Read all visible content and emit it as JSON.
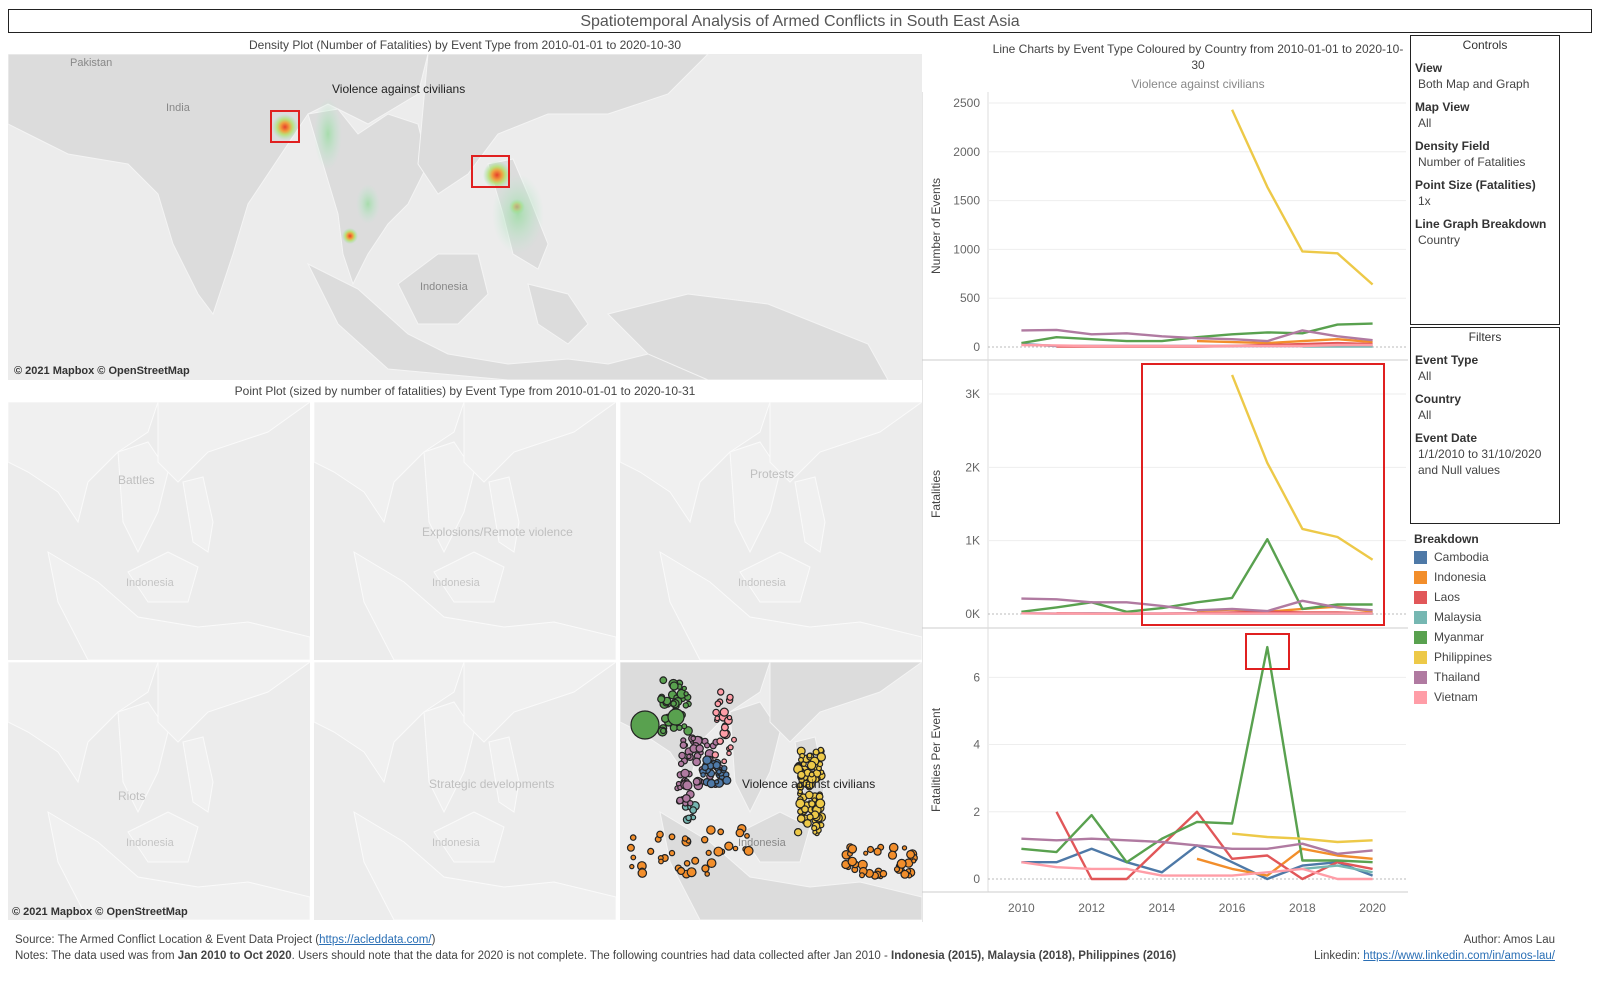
{
  "page_title": "Spatiotemporal Analysis of Armed Conflicts in South East Asia",
  "density": {
    "title": "Density Plot (Number of Fatalities) by Event Type from 2010-01-01 to 2020-10-30",
    "caption": "Violence against civilians",
    "labels": {
      "pakistan": "Pakistan",
      "india": "India",
      "indonesia": "Indonesia"
    },
    "attribution": "© 2021 Mapbox © OpenStreetMap"
  },
  "points": {
    "title": "Point Plot (sized by number of fatalities) by Event Type from 2010-01-01 to 2020-10-31",
    "panels": [
      {
        "caption": "Battles",
        "country": "Indonesia"
      },
      {
        "caption": "Explosions/Remote violence",
        "country": "Indonesia"
      },
      {
        "caption": "Protests",
        "country": "Indonesia"
      },
      {
        "caption": "Riots",
        "country": "Indonesia"
      },
      {
        "caption": "Strategic developments",
        "country": "Indonesia"
      },
      {
        "caption": "Violence against civilians",
        "country": "Indonesia"
      }
    ],
    "attribution": "© 2021 Mapbox © OpenStreetMap"
  },
  "line_charts": {
    "title": "Line Charts by Event Type Coloured by Country from 2010-01-01 to 2020-10-30",
    "subtitle": "Violence against civilians"
  },
  "chart_data": [
    {
      "type": "line",
      "ylabel": "Number of Events",
      "ylim": [
        0,
        2500
      ],
      "yticks": [
        0,
        500,
        1000,
        1500,
        2000,
        2500
      ],
      "ytick_labels": [
        "0",
        "500",
        "1000",
        "1500",
        "2000",
        "2500"
      ],
      "series": [
        {
          "name": "Cambodia",
          "x": [
            2010,
            2011,
            2012,
            2013,
            2014,
            2015,
            2016,
            2017,
            2018,
            2019,
            2020
          ],
          "values": [
            30,
            10,
            10,
            10,
            10,
            10,
            10,
            10,
            10,
            10,
            10
          ]
        },
        {
          "name": "Indonesia",
          "x": [
            2015,
            2016,
            2017,
            2018,
            2019,
            2020
          ],
          "values": [
            60,
            50,
            40,
            60,
            80,
            50
          ]
        },
        {
          "name": "Laos",
          "x": [
            2011,
            2012,
            2013,
            2014,
            2015,
            2016,
            2017,
            2018,
            2019,
            2020
          ],
          "values": [
            5,
            5,
            5,
            5,
            5,
            10,
            20,
            30,
            40,
            30
          ]
        },
        {
          "name": "Malaysia",
          "x": [
            2018,
            2019,
            2020
          ],
          "values": [
            5,
            5,
            5
          ]
        },
        {
          "name": "Myanmar",
          "x": [
            2010,
            2011,
            2012,
            2013,
            2014,
            2015,
            2016,
            2017,
            2018,
            2019,
            2020
          ],
          "values": [
            40,
            100,
            80,
            60,
            60,
            100,
            130,
            150,
            140,
            230,
            240
          ]
        },
        {
          "name": "Philippines",
          "x": [
            2016,
            2017,
            2018,
            2019,
            2020
          ],
          "values": [
            2430,
            1640,
            980,
            960,
            640
          ]
        },
        {
          "name": "Thailand",
          "x": [
            2010,
            2011,
            2012,
            2013,
            2014,
            2015,
            2016,
            2017,
            2018,
            2019,
            2020
          ],
          "values": [
            170,
            175,
            130,
            140,
            110,
            90,
            80,
            60,
            170,
            110,
            70
          ]
        },
        {
          "name": "Vietnam",
          "x": [
            2010,
            2011,
            2012,
            2013,
            2014,
            2015,
            2016,
            2017,
            2018,
            2019,
            2020
          ],
          "values": [
            20,
            15,
            10,
            10,
            10,
            10,
            10,
            10,
            10,
            20,
            20
          ]
        }
      ]
    },
    {
      "type": "line",
      "ylabel": "Fatalities",
      "ylim": [
        0,
        3300
      ],
      "yticks": [
        0,
        1000,
        2000,
        3000
      ],
      "ytick_labels": [
        "0K",
        "1K",
        "2K",
        "3K"
      ],
      "series": [
        {
          "name": "Cambodia",
          "x": [
            2010,
            2011,
            2012,
            2013,
            2014,
            2015,
            2016,
            2017,
            2018,
            2019,
            2020
          ],
          "values": [
            10,
            5,
            10,
            5,
            5,
            10,
            5,
            5,
            5,
            5,
            5
          ]
        },
        {
          "name": "Indonesia",
          "x": [
            2015,
            2016,
            2017,
            2018,
            2019,
            2020
          ],
          "values": [
            40,
            60,
            30,
            70,
            100,
            30
          ]
        },
        {
          "name": "Laos",
          "x": [
            2011,
            2012,
            2013,
            2014,
            2015,
            2016,
            2017,
            2018,
            2019,
            2020
          ],
          "values": [
            10,
            5,
            5,
            5,
            10,
            20,
            30,
            20,
            20,
            10
          ]
        },
        {
          "name": "Malaysia",
          "x": [
            2018,
            2019,
            2020
          ],
          "values": [
            5,
            5,
            5
          ]
        },
        {
          "name": "Myanmar",
          "x": [
            2010,
            2011,
            2012,
            2013,
            2014,
            2015,
            2016,
            2017,
            2018,
            2019,
            2020
          ],
          "values": [
            30,
            90,
            160,
            30,
            80,
            160,
            220,
            1020,
            70,
            130,
            130
          ]
        },
        {
          "name": "Philippines",
          "x": [
            2016,
            2017,
            2018,
            2019,
            2020
          ],
          "values": [
            3260,
            2060,
            1160,
            1050,
            740
          ]
        },
        {
          "name": "Thailand",
          "x": [
            2010,
            2011,
            2012,
            2013,
            2014,
            2015,
            2016,
            2017,
            2018,
            2019,
            2020
          ],
          "values": [
            210,
            200,
            160,
            160,
            110,
            50,
            70,
            40,
            180,
            90,
            50
          ]
        },
        {
          "name": "Vietnam",
          "x": [
            2010,
            2011,
            2012,
            2013,
            2014,
            2015,
            2016,
            2017,
            2018,
            2019,
            2020
          ],
          "values": [
            10,
            5,
            5,
            5,
            5,
            5,
            5,
            5,
            5,
            5,
            5
          ]
        }
      ]
    },
    {
      "type": "line",
      "ylabel": "Fatalities Per Event",
      "ylim": [
        0,
        7.2
      ],
      "yticks": [
        0,
        2,
        4,
        6
      ],
      "ytick_labels": [
        "0",
        "2",
        "4",
        "6"
      ],
      "xticks": [
        2010,
        2012,
        2014,
        2016,
        2018,
        2020
      ],
      "xtick_labels": [
        "2010",
        "2012",
        "2014",
        "2016",
        "2018",
        "2020"
      ],
      "series": [
        {
          "name": "Cambodia",
          "x": [
            2010,
            2011,
            2012,
            2013,
            2014,
            2015,
            2016,
            2017,
            2018,
            2019,
            2020
          ],
          "values": [
            0.5,
            0.5,
            0.9,
            0.5,
            0.2,
            1.0,
            0.5,
            0.0,
            0.4,
            0.5,
            0.1
          ]
        },
        {
          "name": "Indonesia",
          "x": [
            2015,
            2016,
            2017,
            2018,
            2019,
            2020
          ],
          "values": [
            0.6,
            0.3,
            0.1,
            0.9,
            0.7,
            0.6
          ]
        },
        {
          "name": "Laos",
          "x": [
            2011,
            2012,
            2013,
            2014,
            2015,
            2016,
            2017,
            2018,
            2019,
            2020
          ],
          "values": [
            2.0,
            0.0,
            0.0,
            1.0,
            2.0,
            0.6,
            0.7,
            0.0,
            0.5,
            0.3
          ]
        },
        {
          "name": "Malaysia",
          "x": [
            2018,
            2019,
            2020
          ],
          "values": [
            0.3,
            0.4,
            0.2
          ]
        },
        {
          "name": "Myanmar",
          "x": [
            2010,
            2011,
            2012,
            2013,
            2014,
            2015,
            2016,
            2017,
            2018,
            2019,
            2020
          ],
          "values": [
            0.9,
            0.8,
            1.9,
            0.5,
            1.2,
            1.7,
            1.65,
            6.9,
            0.55,
            0.55,
            0.5
          ]
        },
        {
          "name": "Philippines",
          "x": [
            2016,
            2017,
            2018,
            2019,
            2020
          ],
          "values": [
            1.35,
            1.25,
            1.2,
            1.1,
            1.15
          ]
        },
        {
          "name": "Thailand",
          "x": [
            2010,
            2011,
            2012,
            2013,
            2014,
            2015,
            2016,
            2017,
            2018,
            2019,
            2020
          ],
          "values": [
            1.2,
            1.15,
            1.2,
            1.15,
            1.1,
            1.0,
            0.9,
            0.9,
            1.05,
            0.75,
            0.85
          ]
        },
        {
          "name": "Vietnam",
          "x": [
            2010,
            2011,
            2012,
            2013,
            2014,
            2015,
            2016,
            2017,
            2018,
            2019,
            2020
          ],
          "values": [
            0.5,
            0.35,
            0.3,
            0.3,
            0.1,
            0.1,
            0.1,
            0.2,
            0.3,
            0.0,
            0.0
          ]
        }
      ]
    }
  ],
  "controls": {
    "title": "Controls",
    "items": [
      {
        "label": "View",
        "value": "Both Map and Graph"
      },
      {
        "label": "Map View",
        "value": "All"
      },
      {
        "label": "Density Field",
        "value": "Number of Fatalities"
      },
      {
        "label": "Point Size (Fatalities)",
        "value": "1x"
      },
      {
        "label": "Line Graph Breakdown",
        "value": "Country"
      }
    ]
  },
  "filters": {
    "title": "Filters",
    "items": [
      {
        "label": "Event Type",
        "value": "All"
      },
      {
        "label": "Country",
        "value": "All"
      },
      {
        "label": "Event Date",
        "value": "1/1/2010 to 31/10/2020",
        "value2": "and Null values"
      }
    ]
  },
  "legend": {
    "title": "Breakdown",
    "items": [
      {
        "name": "Cambodia",
        "color": "#4e79a7"
      },
      {
        "name": "Indonesia",
        "color": "#f28e2b"
      },
      {
        "name": "Laos",
        "color": "#e15759"
      },
      {
        "name": "Malaysia",
        "color": "#76b7b2"
      },
      {
        "name": "Myanmar",
        "color": "#59a14f"
      },
      {
        "name": "Philippines",
        "color": "#edc948"
      },
      {
        "name": "Thailand",
        "color": "#b07aa1"
      },
      {
        "name": "Vietnam",
        "color": "#ff9da7"
      }
    ]
  },
  "footer": {
    "source_prefix": "Source: The Armed Conflict Location & Event Data Project (",
    "source_link": "https://acleddata.com/",
    "source_suffix": ")",
    "notes_a": "Notes: The data used was from ",
    "notes_b": "Jan 2010 to Oct 2020",
    "notes_c": ". Users should note that the data for 2020 is not complete. The following countries had data collected after Jan 2010 - ",
    "notes_d": "Indonesia (2015), Malaysia (2018), Philippines (2016)",
    "author": "Author: Amos Lau",
    "linkedin_prefix": "Linkedin: ",
    "linkedin_link": "https://www.linkedin.com/in/amos-lau/"
  }
}
